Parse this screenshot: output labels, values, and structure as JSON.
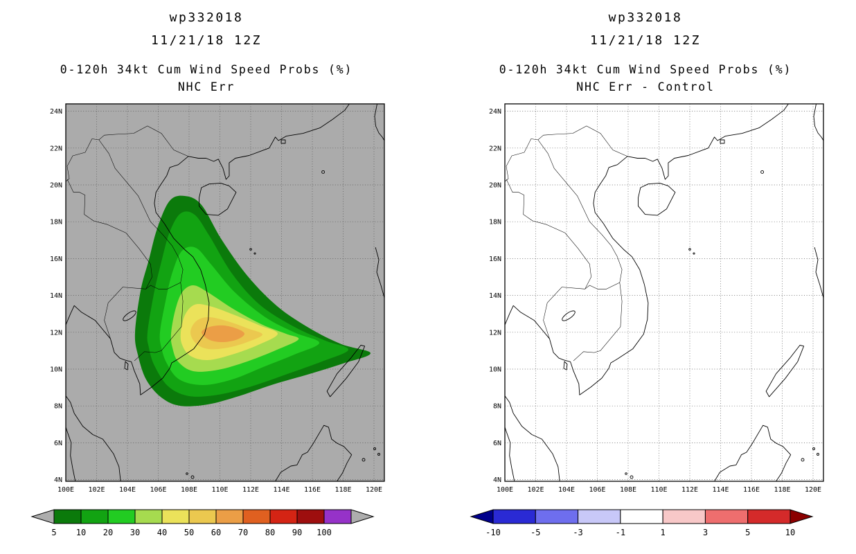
{
  "panels": [
    {
      "storm_id": "wp332018",
      "init_time": "11/21/18 12Z",
      "title": "0-120h 34kt Cum Wind Speed Probs (%)",
      "subtitle": "NHC Err",
      "map": {
        "background": "#ABABAB",
        "lat_ticks": [
          "24N",
          "22N",
          "20N",
          "18N",
          "16N",
          "14N",
          "12N",
          "10N",
          "8N",
          "6N",
          "4N"
        ],
        "lon_ticks": [
          "100E",
          "102E",
          "104E",
          "106E",
          "108E",
          "110E",
          "112E",
          "114E",
          "116E",
          "118E",
          "120E"
        ]
      },
      "colorbar": {
        "arrow_left": "#ADADAD",
        "arrow_right": "#ADADAD",
        "end_label": "",
        "segments": [
          {
            "label": "5",
            "color": "#0B7A0B"
          },
          {
            "label": "10",
            "color": "#12A312"
          },
          {
            "label": "20",
            "color": "#22CC22"
          },
          {
            "label": "30",
            "color": "#A6DB4F"
          },
          {
            "label": "40",
            "color": "#EBE25A"
          },
          {
            "label": "50",
            "color": "#EBC84F"
          },
          {
            "label": "60",
            "color": "#EB9E46"
          },
          {
            "label": "70",
            "color": "#E06020"
          },
          {
            "label": "80",
            "color": "#D42414"
          },
          {
            "label": "90",
            "color": "#9E0E0E"
          },
          {
            "label": "100",
            "color": "#9632C8"
          }
        ]
      }
    },
    {
      "storm_id": "wp332018",
      "init_time": "11/21/18 12Z",
      "title": "0-120h 34kt Cum Wind Speed Probs (%)",
      "subtitle": "NHC Err - Control",
      "map": {
        "background": "#FFFFFF",
        "lat_ticks": [
          "24N",
          "22N",
          "20N",
          "18N",
          "16N",
          "14N",
          "12N",
          "10N",
          "8N",
          "6N",
          "4N"
        ],
        "lon_ticks": [
          "100E",
          "102E",
          "104E",
          "106E",
          "108E",
          "110E",
          "112E",
          "114E",
          "116E",
          "118E",
          "120E"
        ]
      },
      "colorbar": {
        "arrow_left": "#00008B",
        "arrow_right": "#8B0000",
        "end_label": "10",
        "segments": [
          {
            "label": "-10",
            "color": "#2A2AD4"
          },
          {
            "label": "-5",
            "color": "#6E6EEE"
          },
          {
            "label": "-3",
            "color": "#C8C8F8"
          },
          {
            "label": "-1",
            "color": "#FFFFFF"
          },
          {
            "label": "1",
            "color": "#F8C8C8"
          },
          {
            "label": "3",
            "color": "#EE6E6E"
          },
          {
            "label": "5",
            "color": "#D42A2A"
          }
        ]
      }
    }
  ],
  "chart_data": [
    {
      "type": "heatmap",
      "subtype": "filled-contour-map",
      "title": "wp332018 11/21/18 12Z",
      "field": "0-120h 34kt Cum Wind Speed Probs (%)",
      "experiment": "NHC Err",
      "lon_range_e": [
        100,
        120.7
      ],
      "lat_range_n": [
        3.9,
        24.4
      ],
      "grid_interval_deg": 2,
      "contour_levels_pct": [
        5,
        10,
        20,
        30,
        40,
        50,
        60,
        70,
        80,
        90,
        100
      ],
      "bands_visible_pct": [
        5,
        10,
        20,
        30,
        40,
        50,
        60
      ],
      "max_band_pct": "60-70",
      "max_center": {
        "lon_e": 110.5,
        "lat_n": 11.9
      },
      "band_extents": [
        {
          "level_pct": 5,
          "west_e": 104.5,
          "east_e": 119.8,
          "south_n": 8.0,
          "north_n": 19.4
        },
        {
          "level_pct": 10,
          "west_e": 105.3,
          "east_e": 118.3,
          "south_n": 8.5,
          "north_n": 18.5
        },
        {
          "level_pct": 20,
          "west_e": 106.1,
          "east_e": 116.5,
          "south_n": 9.2,
          "north_n": 16.6
        },
        {
          "level_pct": 30,
          "west_e": 106.8,
          "east_e": 115.1,
          "south_n": 9.9,
          "north_n": 14.6
        },
        {
          "level_pct": 40,
          "west_e": 107.5,
          "east_e": 113.8,
          "south_n": 10.5,
          "north_n": 13.5
        },
        {
          "level_pct": 50,
          "west_e": 108.1,
          "east_e": 112.8,
          "south_n": 11.1,
          "north_n": 12.8
        },
        {
          "level_pct": 60,
          "west_e": 108.8,
          "east_e": 111.6,
          "south_n": 11.5,
          "north_n": 12.4
        }
      ],
      "legend_position": "bottom"
    },
    {
      "type": "heatmap",
      "subtype": "filled-contour-map",
      "title": "wp332018 11/21/18 12Z",
      "field": "0-120h 34kt Cum Wind Speed Probs (%)",
      "experiment": "NHC Err - Control",
      "lon_range_e": [
        100,
        120.7
      ],
      "lat_range_n": [
        3.9,
        24.4
      ],
      "grid_interval_deg": 2,
      "contour_levels_pct": [
        -10,
        -5,
        -3,
        -1,
        1,
        3,
        5,
        10
      ],
      "bands_visible_pct": [],
      "note": "No difference shading visible; field everywhere within -1 to +1 %",
      "legend_position": "bottom"
    }
  ]
}
